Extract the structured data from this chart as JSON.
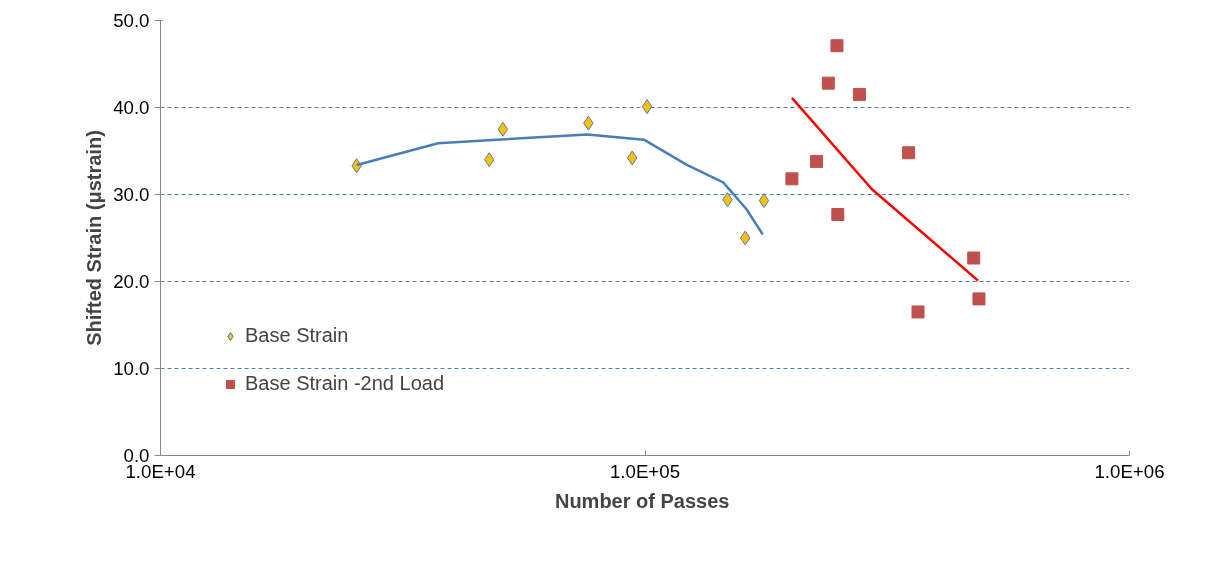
{
  "chart_data": {
    "type": "scatter",
    "xlabel": "Number of  Passes",
    "ylabel": "Shifted Strain (μstrain)",
    "log": "x",
    "xlim": [
      10000,
      1000000
    ],
    "xticks": [
      {
        "value": 10000,
        "label": "1.0E+04"
      },
      {
        "value": 100000,
        "label": "1.0E+05"
      },
      {
        "value": 1000000,
        "label": "1.0E+06"
      }
    ],
    "ylim": [
      0,
      50
    ],
    "yticks": [
      {
        "value": 0,
        "label": "0.0"
      },
      {
        "value": 10,
        "label": "10.0"
      },
      {
        "value": 20,
        "label": "20.0"
      },
      {
        "value": 30,
        "label": "30.0"
      },
      {
        "value": 40,
        "label": "40.0"
      },
      {
        "value": 50,
        "label": "50.0"
      }
    ],
    "grid": "y",
    "legend": "bottom left",
    "series": [
      {
        "name": "Base Strain",
        "color": "#ffc000",
        "marker": "diamond",
        "x": [
          25400,
          47700,
          50900,
          76400,
          94100,
          101000,
          148000,
          161000,
          176000
        ],
        "values": [
          33.3,
          34.0,
          37.5,
          38.2,
          34.2,
          40.1,
          29.4,
          25.0,
          29.3
        ]
      },
      {
        "name": "Base Strain -2nd Load",
        "color": "#c0504d",
        "marker": "square",
        "x": [
          201000,
          226000,
          239000,
          249000,
          250000,
          277000,
          350000,
          366000,
          477000,
          489000
        ],
        "values": [
          31.8,
          33.8,
          42.8,
          47.1,
          27.7,
          41.5,
          34.8,
          16.5,
          22.7,
          18.0
        ]
      },
      {
        "type": "line",
        "color": "#4a7ebb",
        "marker": "none",
        "x": [
          25400,
          37400,
          76000,
          99500,
          122000,
          145000,
          162000,
          175000
        ],
        "values": [
          33.4,
          35.9,
          36.9,
          36.3,
          33.4,
          31.4,
          28.3,
          25.4
        ]
      },
      {
        "type": "line",
        "color": "#ff0000",
        "marker": "none",
        "x": [
          201000,
          294000,
          487000
        ],
        "values": [
          41.1,
          30.6,
          20.1
        ]
      }
    ]
  }
}
